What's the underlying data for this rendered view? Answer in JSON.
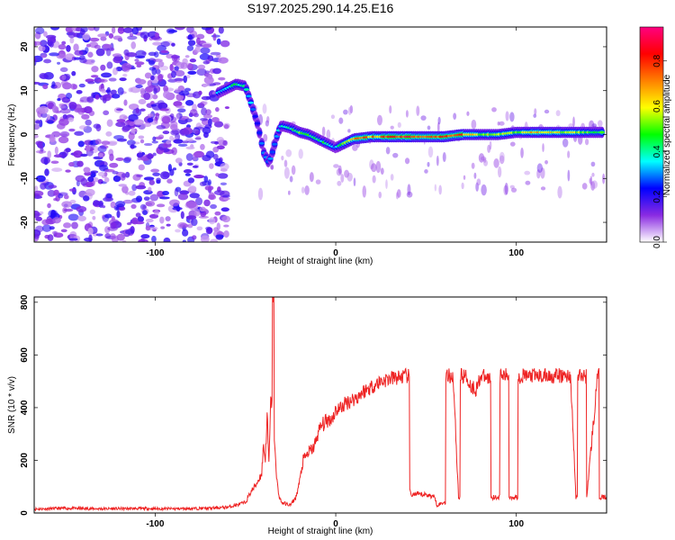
{
  "title": "S197.2025.290.14.25.E16",
  "chart_data": [
    {
      "type": "heatmap",
      "xlabel": "Height of straight line (km)",
      "ylabel": "Frequency (Hz)",
      "xlim": [
        -167,
        150
      ],
      "ylim": [
        -24.5,
        24.5
      ],
      "xticks": [
        -100,
        0,
        100
      ],
      "xtick_labels": [
        "-100",
        "0",
        "100"
      ],
      "yticks": [
        -20,
        -10,
        0,
        10,
        20
      ],
      "ytick_labels": [
        "-20",
        "-10",
        "0",
        "10",
        "20"
      ],
      "colorbar": {
        "label": "Normalized spectral amplitude",
        "range": [
          0.0,
          0.95
        ],
        "ticks": [
          0.0,
          0.2,
          0.4,
          0.6,
          0.8
        ],
        "tick_labels": [
          "0.0",
          "0.2",
          "0.4",
          "0.6",
          "0.8"
        ],
        "colormap": [
          "#ffffff",
          "#8a2be2",
          "#0000ff",
          "#00ffff",
          "#00ff00",
          "#ffff00",
          "#ff8000",
          "#ff0000",
          "#ff0080"
        ]
      },
      "ridge": {
        "x": [
          -65,
          -60,
          -55,
          -50,
          -46,
          -43,
          -40,
          -37,
          -35,
          -32,
          -30,
          -25,
          -20,
          -15,
          -10,
          -5,
          0,
          10,
          20,
          30,
          40,
          50,
          60,
          70,
          80,
          90,
          100,
          110,
          120,
          130,
          140,
          148
        ],
        "y": [
          9.5,
          10.5,
          11.5,
          11.0,
          6.0,
          2.0,
          -4.0,
          -6.5,
          -4.0,
          0.5,
          2.0,
          1.5,
          0.5,
          0.0,
          -1.0,
          -2.0,
          -3.0,
          -1.0,
          -0.5,
          -0.5,
          -0.5,
          -0.5,
          -0.5,
          0.0,
          0.0,
          0.0,
          0.5,
          0.5,
          0.5,
          0.5,
          0.5,
          0.5
        ],
        "amplitude": [
          0.35,
          0.4,
          0.45,
          0.4,
          0.3,
          0.25,
          0.3,
          0.3,
          0.3,
          0.35,
          0.4,
          0.45,
          0.5,
          0.5,
          0.45,
          0.45,
          0.35,
          0.7,
          0.75,
          0.8,
          0.85,
          0.8,
          0.85,
          0.8,
          0.6,
          0.6,
          0.55,
          0.7,
          0.65,
          0.6,
          0.55,
          0.5
        ]
      }
    },
    {
      "type": "line",
      "xlabel": "Height of straight line (km)",
      "ylabel": "SNR (10 * v/v)",
      "xlim": [
        -167,
        150
      ],
      "ylim": [
        0,
        820
      ],
      "xticks": [
        -100,
        0,
        100
      ],
      "xtick_labels": [
        "-100",
        "0",
        "100"
      ],
      "yticks": [
        0,
        200,
        400,
        600,
        800
      ],
      "ytick_labels": [
        "0",
        "200",
        "400",
        "600",
        "800"
      ],
      "color": "#ee2222",
      "series": [
        {
          "x": [
            -167,
            -150,
            -130,
            -110,
            -90,
            -70,
            -60,
            -55,
            -50,
            -47,
            -44,
            -41,
            -40,
            -39,
            -38,
            -37,
            -36,
            -35,
            -34,
            -33,
            -32,
            -31,
            -30,
            -28,
            -25,
            -22,
            -20,
            -18,
            -15,
            -12,
            -10,
            -8,
            -5,
            -2,
            0,
            3,
            6,
            9,
            12,
            15,
            20,
            25,
            30,
            35,
            40,
            41,
            42,
            50,
            55,
            56,
            60,
            61,
            65,
            68,
            69,
            72,
            75,
            78,
            80,
            85,
            86,
            90,
            91,
            95,
            96,
            100,
            101,
            110,
            120,
            130,
            133,
            134,
            138,
            139,
            145,
            146,
            150
          ],
          "y": [
            15,
            18,
            16,
            17,
            16,
            18,
            22,
            30,
            40,
            80,
            110,
            150,
            260,
            200,
            380,
            180,
            420,
            820,
            300,
            150,
            90,
            55,
            40,
            35,
            30,
            60,
            120,
            200,
            230,
            250,
            300,
            330,
            350,
            360,
            390,
            400,
            420,
            430,
            440,
            460,
            480,
            500,
            510,
            515,
            520,
            80,
            70,
            70,
            60,
            30,
            40,
            520,
            520,
            60,
            520,
            520,
            480,
            470,
            520,
            510,
            60,
            60,
            520,
            520,
            60,
            60,
            520,
            520,
            520,
            520,
            60,
            520,
            520,
            60,
            520,
            60,
            60
          ]
        }
      ]
    }
  ]
}
